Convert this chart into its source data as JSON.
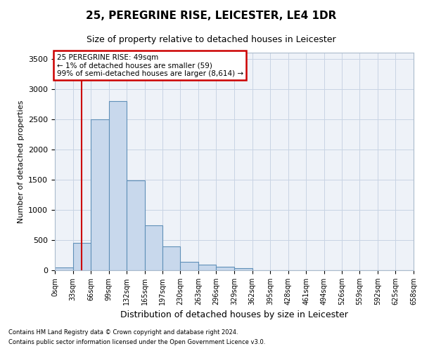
{
  "title": "25, PEREGRINE RISE, LEICESTER, LE4 1DR",
  "subtitle": "Size of property relative to detached houses in Leicester",
  "xlabel": "Distribution of detached houses by size in Leicester",
  "ylabel": "Number of detached properties",
  "footnote1": "Contains HM Land Registry data © Crown copyright and database right 2024.",
  "footnote2": "Contains public sector information licensed under the Open Government Licence v3.0.",
  "annotation_title": "25 PEREGRINE RISE: 49sqm",
  "annotation_line1": "← 1% of detached houses are smaller (59)",
  "annotation_line2": "99% of semi-detached houses are larger (8,614) →",
  "property_size_sqm": 49,
  "bin_edges": [
    0,
    33,
    66,
    99,
    132,
    165,
    197,
    230,
    263,
    296,
    329,
    362,
    395,
    428,
    461,
    494,
    526,
    559,
    592,
    625,
    658
  ],
  "bin_labels": [
    "0sqm",
    "33sqm",
    "66sqm",
    "99sqm",
    "132sqm",
    "165sqm",
    "197sqm",
    "230sqm",
    "263sqm",
    "296sqm",
    "329sqm",
    "362sqm",
    "395sqm",
    "428sqm",
    "461sqm",
    "494sqm",
    "526sqm",
    "559sqm",
    "592sqm",
    "625sqm",
    "658sqm"
  ],
  "bar_heights": [
    50,
    450,
    2500,
    2800,
    1490,
    740,
    390,
    140,
    90,
    55,
    30,
    0,
    0,
    0,
    0,
    0,
    0,
    0,
    0,
    0
  ],
  "bar_color": "#c8d8ec",
  "bar_edge_color": "#6090b8",
  "vline_x": 49,
  "vline_color": "#cc0000",
  "ylim": [
    0,
    3600
  ],
  "yticks": [
    0,
    500,
    1000,
    1500,
    2000,
    2500,
    3000,
    3500
  ],
  "grid_color": "#c8d4e4",
  "bg_color": "#eef2f8",
  "title_fontsize": 11,
  "subtitle_fontsize": 9,
  "annotation_box_edge_color": "#cc0000",
  "tick_fontsize": 7,
  "ylabel_fontsize": 8,
  "xlabel_fontsize": 9
}
